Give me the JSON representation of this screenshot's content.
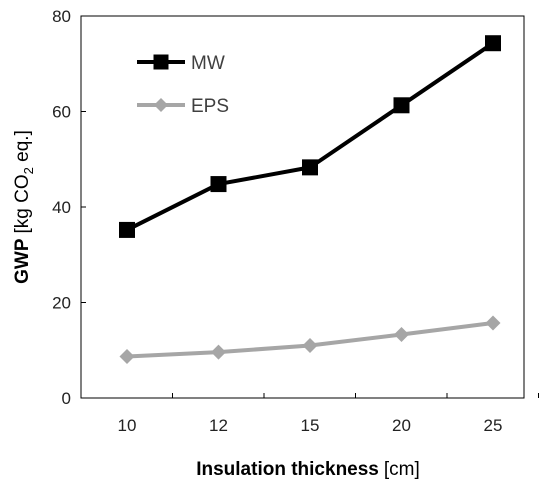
{
  "chart_data": {
    "type": "line",
    "xlabel_bold": "Insulation thickness",
    "xlabel_rest": "[cm]",
    "ylabel_bold": "GWP",
    "ylabel_pre": "[kg CO",
    "ylabel_sub": "2",
    "ylabel_post": " eq.]",
    "categories": [
      "10",
      "12",
      "15",
      "20",
      "25"
    ],
    "ylim": [
      0,
      80
    ],
    "yticks": [
      "0",
      "20",
      "40",
      "60",
      "80"
    ],
    "legend_position": "top-left",
    "grid": false,
    "series": [
      {
        "name": "MW",
        "values": [
          35.2,
          44.8,
          48.3,
          61.3,
          74.3
        ],
        "color": "#000000",
        "marker": "square"
      },
      {
        "name": "EPS",
        "values": [
          8.7,
          9.6,
          11.0,
          13.3,
          15.7
        ],
        "color": "#a6a6a6",
        "marker": "diamond"
      }
    ]
  }
}
